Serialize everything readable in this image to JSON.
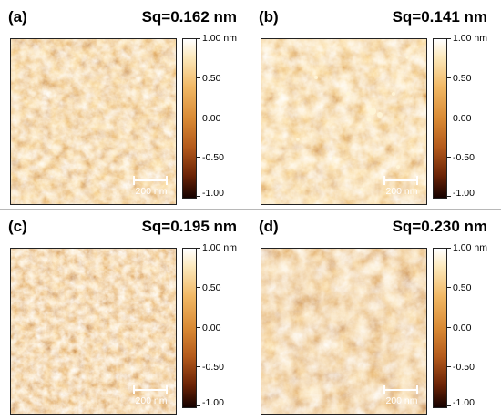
{
  "colors": {
    "divider": "#b8b8b8",
    "bright": "#fff3c8",
    "mid": "#c87a2f",
    "dark": "#4a1504"
  },
  "panels": [
    {
      "tag": "(a)",
      "sq": "Sq=0.162 nm",
      "scalebar": "200 nm",
      "colorbar": [
        "1.00 nm",
        "0.50",
        "0.00",
        "-0.50",
        "-1.00"
      ]
    },
    {
      "tag": "(b)",
      "sq": "Sq=0.141 nm",
      "scalebar": "200 nm",
      "colorbar": [
        "1.00 nm",
        "0.50",
        "0.00",
        "-0.50",
        "-1.00"
      ]
    },
    {
      "tag": "(c)",
      "sq": "Sq=0.195 nm",
      "scalebar": "200 nm",
      "colorbar": [
        "1.00 nm",
        "0.50",
        "0.00",
        "-0.50",
        "-1.00"
      ]
    },
    {
      "tag": "(d)",
      "sq": "Sq=0.230 nm",
      "scalebar": "200 nm",
      "colorbar": [
        "1.00 nm",
        "0.50",
        "0.00",
        "-0.50",
        "-1.00"
      ]
    }
  ]
}
